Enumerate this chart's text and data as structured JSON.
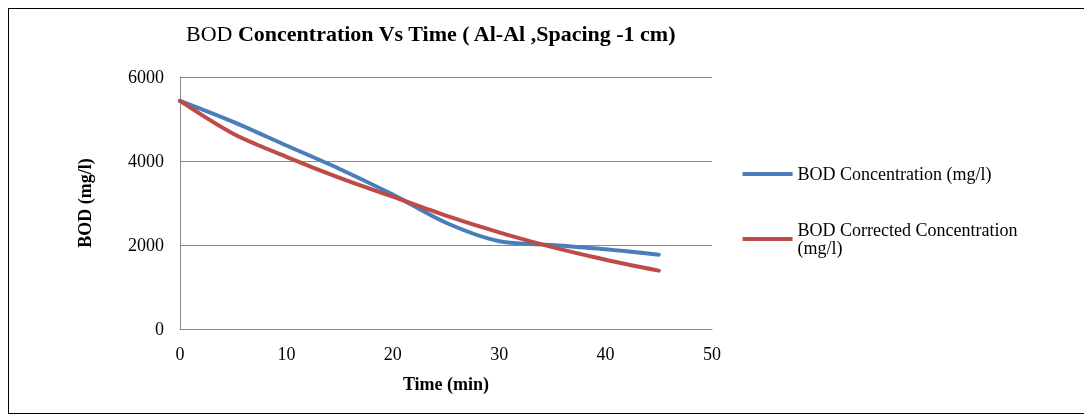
{
  "chart_data": {
    "type": "line",
    "title": "BOD Concentration Vs Time ( Al-Al ,Spacing -1 cm)",
    "xlabel": "Time (min)",
    "ylabel": "BOD (mg/l)",
    "x": [
      0,
      5,
      10,
      15,
      20,
      25,
      30,
      35,
      40,
      45
    ],
    "series": [
      {
        "name": "BOD Concentration (mg/l)",
        "color": "#4a7ebb",
        "values": [
          5430,
          4930,
          4370,
          3810,
          3200,
          2530,
          2090,
          2000,
          1900,
          1770
        ]
      },
      {
        "name": "BOD Corrected Concentration (mg/l)",
        "color": "#be4b48",
        "values": [
          5430,
          4650,
          4100,
          3600,
          3150,
          2700,
          2300,
          1950,
          1650,
          1390
        ]
      }
    ],
    "xlim": [
      0,
      50
    ],
    "xticks": [
      0,
      10,
      20,
      30,
      40,
      50
    ],
    "ylim": [
      0,
      6000
    ],
    "yticks": [
      0,
      2000,
      4000,
      6000
    ],
    "grid": "y",
    "legend": "right",
    "marker": "none",
    "line_style": "solid"
  }
}
